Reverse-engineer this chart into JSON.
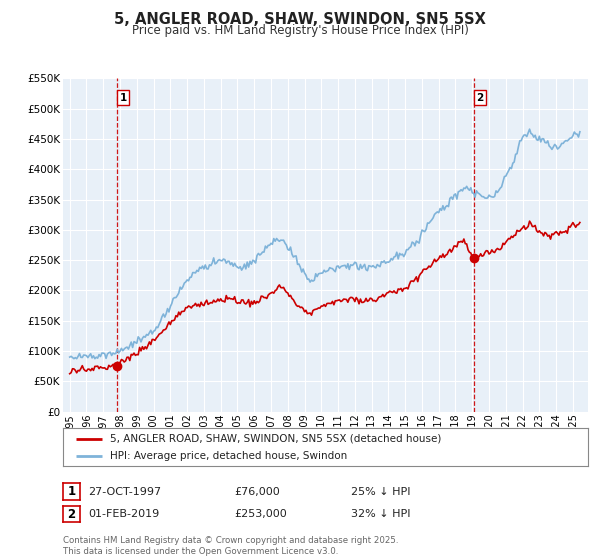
{
  "title": "5, ANGLER ROAD, SHAW, SWINDON, SN5 5SX",
  "subtitle": "Price paid vs. HM Land Registry's House Price Index (HPI)",
  "bg_color": "#e8f0f8",
  "hpi_color": "#7fb3d9",
  "price_color": "#cc0000",
  "marker_color": "#cc0000",
  "vline_color": "#cc0000",
  "grid_color": "#ffffff",
  "ylim": [
    0,
    550000
  ],
  "yticks": [
    0,
    50000,
    100000,
    150000,
    200000,
    250000,
    300000,
    350000,
    400000,
    450000,
    500000,
    550000
  ],
  "purchase1_price": 76000,
  "purchase1_label": "1",
  "purchase1_year": 1997.82,
  "purchase2_price": 253000,
  "purchase2_label": "2",
  "purchase2_year": 2019.08,
  "legend_line1": "5, ANGLER ROAD, SHAW, SWINDON, SN5 5SX (detached house)",
  "legend_line2": "HPI: Average price, detached house, Swindon",
  "annotation1_date": "27-OCT-1997",
  "annotation1_price": "£76,000",
  "annotation1_hpi": "25% ↓ HPI",
  "annotation2_date": "01-FEB-2019",
  "annotation2_price": "£253,000",
  "annotation2_hpi": "32% ↓ HPI",
  "footer": "Contains HM Land Registry data © Crown copyright and database right 2025.\nThis data is licensed under the Open Government Licence v3.0.",
  "x_start_year": 1995,
  "x_end_year": 2025
}
